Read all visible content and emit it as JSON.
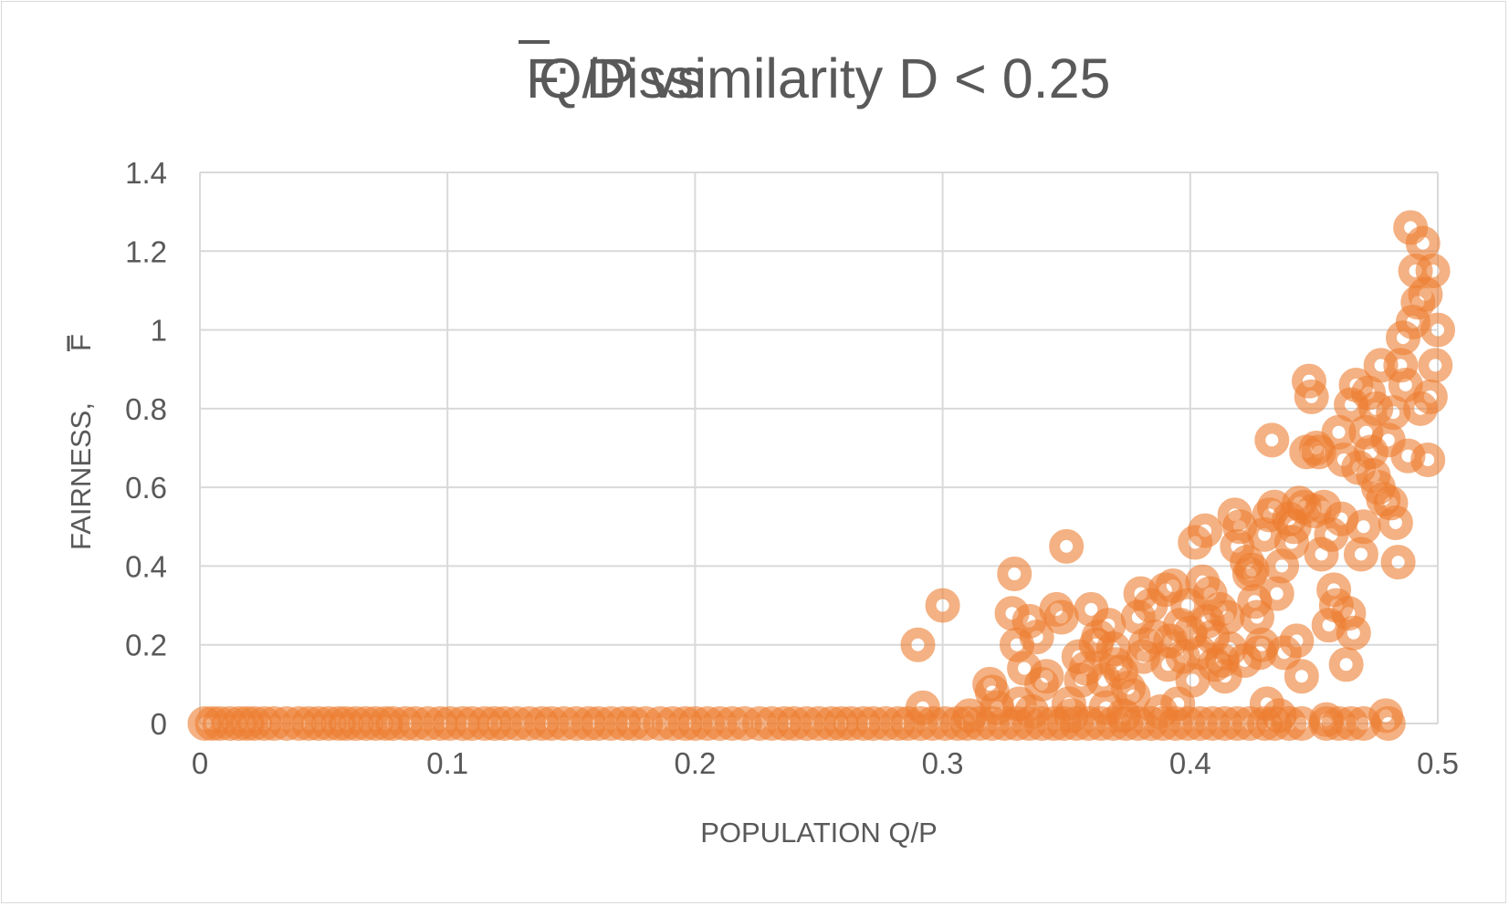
{
  "chart_data": {
    "type": "scatter",
    "title": "Q/P vs",
    "title_symbol": "F",
    "title_suffix": ": Dissimilarity D < 0.25",
    "xlabel": "POPULATION Q/P",
    "ylabel": "FAIRNESS,",
    "ylabel_symbol": "F",
    "xlim": [
      0,
      0.5
    ],
    "ylim": [
      0,
      1.4
    ],
    "x_ticks": [
      "0",
      "0.1",
      "0.2",
      "0.3",
      "0.4",
      "0.5"
    ],
    "y_ticks": [
      "0",
      "0.2",
      "0.4",
      "0.6",
      "0.8",
      "1",
      "1.2",
      "1.4"
    ],
    "grid": true,
    "legend": "none",
    "series": [
      {
        "name": "F",
        "color": "#ED7D31",
        "x": [
          0.002,
          0.005,
          0.008,
          0.012,
          0.016,
          0.019,
          0.022,
          0.026,
          0.03,
          0.035,
          0.04,
          0.044,
          0.048,
          0.052,
          0.056,
          0.059,
          0.063,
          0.067,
          0.071,
          0.075,
          0.078,
          0.083,
          0.087,
          0.092,
          0.097,
          0.101,
          0.106,
          0.11,
          0.115,
          0.119,
          0.123,
          0.128,
          0.133,
          0.138,
          0.142,
          0.147,
          0.152,
          0.157,
          0.161,
          0.166,
          0.171,
          0.175,
          0.18,
          0.186,
          0.191,
          0.196,
          0.2,
          0.205,
          0.21,
          0.215,
          0.22,
          0.226,
          0.231,
          0.236,
          0.24,
          0.245,
          0.25,
          0.255,
          0.259,
          0.263,
          0.268,
          0.272,
          0.277,
          0.282,
          0.286,
          0.291,
          0.296,
          0.301,
          0.306,
          0.31,
          0.315,
          0.32,
          0.325,
          0.33,
          0.335,
          0.34,
          0.345,
          0.349,
          0.354,
          0.359,
          0.364,
          0.369,
          0.374,
          0.379,
          0.384,
          0.389,
          0.394,
          0.399,
          0.404,
          0.409,
          0.414,
          0.419,
          0.424,
          0.43,
          0.434,
          0.44,
          0.445,
          0.455,
          0.46,
          0.465,
          0.47,
          0.48,
          0.29,
          0.292,
          0.3,
          0.311,
          0.319,
          0.32,
          0.322,
          0.328,
          0.329,
          0.33,
          0.331,
          0.333,
          0.335,
          0.336,
          0.338,
          0.34,
          0.342,
          0.346,
          0.348,
          0.35,
          0.351,
          0.352,
          0.355,
          0.356,
          0.358,
          0.36,
          0.362,
          0.363,
          0.365,
          0.366,
          0.367,
          0.369,
          0.37,
          0.372,
          0.373,
          0.375,
          0.377,
          0.379,
          0.38,
          0.381,
          0.382,
          0.384,
          0.386,
          0.388,
          0.39,
          0.391,
          0.392,
          0.393,
          0.395,
          0.396,
          0.397,
          0.399,
          0.4,
          0.401,
          0.402,
          0.404,
          0.405,
          0.406,
          0.407,
          0.408,
          0.409,
          0.41,
          0.412,
          0.413,
          0.414,
          0.415,
          0.416,
          0.418,
          0.419,
          0.42,
          0.422,
          0.423,
          0.424,
          0.425,
          0.426,
          0.427,
          0.428,
          0.429,
          0.43,
          0.431,
          0.432,
          0.433,
          0.434,
          0.435,
          0.436,
          0.437,
          0.438,
          0.44,
          0.441,
          0.442,
          0.443,
          0.444,
          0.445,
          0.446,
          0.447,
          0.448,
          0.449,
          0.45,
          0.451,
          0.452,
          0.453,
          0.454,
          0.455,
          0.456,
          0.457,
          0.458,
          0.459,
          0.46,
          0.461,
          0.462,
          0.463,
          0.464,
          0.465,
          0.466,
          0.467,
          0.468,
          0.469,
          0.47,
          0.471,
          0.472,
          0.473,
          0.474,
          0.475,
          0.476,
          0.477,
          0.478,
          0.479,
          0.48,
          0.481,
          0.482,
          0.483,
          0.484,
          0.485,
          0.486,
          0.487,
          0.488,
          0.489,
          0.49,
          0.491,
          0.492,
          0.493,
          0.494,
          0.495,
          0.496,
          0.497,
          0.498,
          0.499,
          0.5
        ],
        "y": [
          0,
          0,
          0,
          0,
          0,
          0,
          0,
          0,
          0,
          0,
          0,
          0,
          0,
          0,
          0,
          0,
          0,
          0,
          0,
          0,
          0,
          0,
          0,
          0,
          0,
          0,
          0,
          0,
          0,
          0,
          0,
          0,
          0,
          0,
          0,
          0,
          0,
          0,
          0,
          0,
          0,
          0,
          0,
          0,
          0,
          0,
          0,
          0,
          0,
          0,
          0,
          0,
          0,
          0,
          0,
          0,
          0,
          0,
          0,
          0,
          0,
          0,
          0,
          0,
          0,
          0,
          0,
          0,
          0,
          0,
          0,
          0,
          0,
          0,
          0,
          0,
          0,
          0,
          0,
          0,
          0,
          0,
          0,
          0,
          0,
          0,
          0,
          0,
          0,
          0,
          0,
          0,
          0,
          0,
          0,
          0,
          0,
          0,
          0,
          0,
          0,
          0,
          0.2,
          0.04,
          0.3,
          0.02,
          0.1,
          0.08,
          0.04,
          0.28,
          0.38,
          0.2,
          0.05,
          0.14,
          0.26,
          0.03,
          0.22,
          0.1,
          0.12,
          0.29,
          0.27,
          0.45,
          0.05,
          0.02,
          0.17,
          0.11,
          0.14,
          0.29,
          0.2,
          0.22,
          0.11,
          0.04,
          0.25,
          0.19,
          0.15,
          0.13,
          0.02,
          0.09,
          0.07,
          0.27,
          0.33,
          0.17,
          0.2,
          0.3,
          0.22,
          0.03,
          0.34,
          0.15,
          0.21,
          0.35,
          0.05,
          0.25,
          0.17,
          0.3,
          0.23,
          0.11,
          0.46,
          0.18,
          0.36,
          0.49,
          0.26,
          0.33,
          0.22,
          0.15,
          0.29,
          0.16,
          0.12,
          0.27,
          0.19,
          0.53,
          0.45,
          0.5,
          0.16,
          0.41,
          0.38,
          0.39,
          0.31,
          0.27,
          0.18,
          0.2,
          0.48,
          0.05,
          0.53,
          0.72,
          0.55,
          0.33,
          0.02,
          0.4,
          0.18,
          0.52,
          0.46,
          0.5,
          0.21,
          0.56,
          0.12,
          0.55,
          0.69,
          0.87,
          0.83,
          0.54,
          0.7,
          0.69,
          0.43,
          0.55,
          0.01,
          0.25,
          0.48,
          0.34,
          0.3,
          0.74,
          0.52,
          0.67,
          0.15,
          0.28,
          0.81,
          0.23,
          0.86,
          0.65,
          0.43,
          0.5,
          0.74,
          0.84,
          0.69,
          0.63,
          0.8,
          0.6,
          0.91,
          0.57,
          0.02,
          0.72,
          0.56,
          0.79,
          0.51,
          0.41,
          0.91,
          0.98,
          0.86,
          0.68,
          1.26,
          1.02,
          1.15,
          1.07,
          0.8,
          1.22,
          1.09,
          0.67,
          0.83,
          1.15,
          0.91,
          1.0
        ]
      }
    ]
  }
}
